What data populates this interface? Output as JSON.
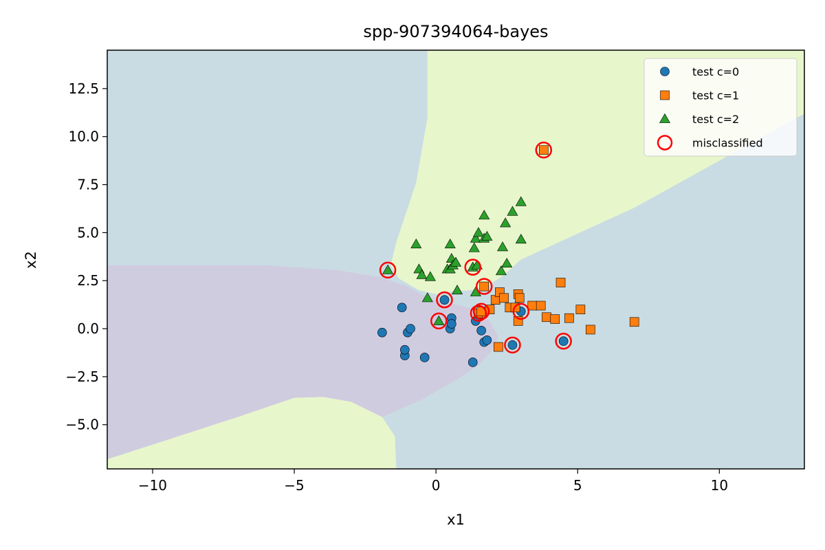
{
  "chart_data": {
    "type": "scatter",
    "title": "spp-907394064-bayes",
    "xlabel": "x1",
    "ylabel": "x2",
    "xlim": [
      -11.6,
      13.0
    ],
    "ylim": [
      -7.3,
      14.5
    ],
    "xticks": [
      -10,
      -5,
      0,
      5,
      10
    ],
    "xtick_labels": [
      "−10",
      "−5",
      "0",
      "5",
      "10"
    ],
    "yticks": [
      -5.0,
      -2.5,
      0.0,
      2.5,
      5.0,
      7.5,
      10.0,
      12.5
    ],
    "ytick_labels": [
      "−5.0",
      "−2.5",
      "0.0",
      "2.5",
      "5.0",
      "7.5",
      "10.0",
      "12.5"
    ],
    "grid": false,
    "legend_position": "top-right",
    "region_colors": {
      "class0": "#d0cce0",
      "class1": "#c9dce3",
      "class2": "#e8f6cc"
    },
    "series": [
      {
        "name": "test c=0",
        "marker": "circle",
        "color": "#1f77b4",
        "points": [
          [
            -1.9,
            -0.2
          ],
          [
            -1.2,
            1.1
          ],
          [
            -1.1,
            -1.4
          ],
          [
            -1.1,
            -1.1
          ],
          [
            -1.0,
            -0.2
          ],
          [
            -0.9,
            0.0
          ],
          [
            -0.4,
            -1.5
          ],
          [
            0.3,
            1.5
          ],
          [
            0.5,
            0.0
          ],
          [
            0.55,
            0.55
          ],
          [
            0.55,
            0.25
          ],
          [
            1.3,
            -1.75
          ],
          [
            1.4,
            0.4
          ],
          [
            1.6,
            -0.1
          ],
          [
            1.7,
            -0.7
          ],
          [
            1.8,
            -0.6
          ],
          [
            2.7,
            -0.85
          ],
          [
            3.0,
            0.9
          ],
          [
            4.5,
            -0.65
          ]
        ]
      },
      {
        "name": "test c=1",
        "marker": "square",
        "color": "#ff7f0e",
        "points": [
          [
            1.5,
            0.8
          ],
          [
            1.6,
            0.9
          ],
          [
            1.7,
            2.2
          ],
          [
            1.9,
            1.0
          ],
          [
            2.1,
            1.5
          ],
          [
            2.2,
            -0.95
          ],
          [
            2.25,
            1.9
          ],
          [
            2.4,
            1.6
          ],
          [
            2.6,
            1.1
          ],
          [
            2.8,
            1.1
          ],
          [
            2.9,
            1.8
          ],
          [
            2.9,
            0.4
          ],
          [
            2.95,
            1.6
          ],
          [
            3.4,
            1.2
          ],
          [
            3.7,
            1.2
          ],
          [
            3.8,
            9.3
          ],
          [
            3.9,
            0.6
          ],
          [
            4.2,
            0.5
          ],
          [
            4.4,
            2.4
          ],
          [
            4.7,
            0.55
          ],
          [
            5.1,
            1.0
          ],
          [
            5.45,
            -0.05
          ],
          [
            7.0,
            0.35
          ]
        ]
      },
      {
        "name": "test c=2",
        "marker": "triangle",
        "color": "#2ca02c",
        "points": [
          [
            -1.7,
            3.05
          ],
          [
            -0.7,
            4.4
          ],
          [
            -0.6,
            3.1
          ],
          [
            -0.5,
            2.8
          ],
          [
            -0.3,
            1.6
          ],
          [
            -0.2,
            2.7
          ],
          [
            0.1,
            0.4
          ],
          [
            0.4,
            3.1
          ],
          [
            0.5,
            3.1
          ],
          [
            0.5,
            4.4
          ],
          [
            0.55,
            3.65
          ],
          [
            0.6,
            3.3
          ],
          [
            0.7,
            3.45
          ],
          [
            0.75,
            2.0
          ],
          [
            1.3,
            3.2
          ],
          [
            1.35,
            4.2
          ],
          [
            1.4,
            4.7
          ],
          [
            1.4,
            1.9
          ],
          [
            1.45,
            3.3
          ],
          [
            1.5,
            5.0
          ],
          [
            1.7,
            5.9
          ],
          [
            1.7,
            4.7
          ],
          [
            1.8,
            4.8
          ],
          [
            2.3,
            3.0
          ],
          [
            2.35,
            4.25
          ],
          [
            2.45,
            5.5
          ],
          [
            2.5,
            3.4
          ],
          [
            2.7,
            6.1
          ],
          [
            3.0,
            6.6
          ],
          [
            3.0,
            4.65
          ]
        ]
      }
    ],
    "misclassified": [
      [
        -1.7,
        3.05
      ],
      [
        0.3,
        1.5
      ],
      [
        0.1,
        0.4
      ],
      [
        1.3,
        3.2
      ],
      [
        1.5,
        0.8
      ],
      [
        1.6,
        0.9
      ],
      [
        1.7,
        2.2
      ],
      [
        2.7,
        -0.85
      ],
      [
        3.0,
        0.9
      ],
      [
        3.8,
        9.3
      ],
      [
        4.5,
        -0.65
      ]
    ],
    "misclassified_label": "misclassified",
    "misclassified_color": "#ff0000"
  }
}
